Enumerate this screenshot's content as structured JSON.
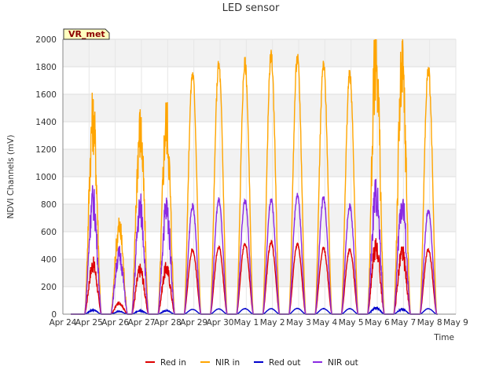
{
  "chart_data": {
    "type": "line",
    "title": "LED sensor",
    "xlabel": "Time",
    "ylabel": "NDVI Channels (mV)",
    "ylim": [
      0,
      2000
    ],
    "xlim": [
      0,
      15
    ],
    "yticks": [
      0,
      200,
      400,
      600,
      800,
      1000,
      1200,
      1400,
      1600,
      1800,
      2000
    ],
    "xticks": [
      "Apr 24",
      "Apr 25",
      "Apr 26",
      "Apr 27",
      "Apr 28",
      "Apr 29",
      "Apr 30",
      "May 1",
      "May 2",
      "May 3",
      "May 4",
      "May 5",
      "May 6",
      "May 7",
      "May 8",
      "May 9"
    ],
    "grid": true,
    "legend_position": "bottom",
    "annotation": "VR_met",
    "series": [
      {
        "name": "Red in",
        "color": "#dd0000",
        "daily_peaks": [
          360,
          80,
          320,
          330,
          470,
          495,
          515,
          525,
          510,
          480,
          470,
          490,
          440,
          470
        ]
      },
      {
        "name": "NIR in",
        "color": "#ffa500",
        "daily_peaks": [
          1410,
          630,
          1330,
          1390,
          1750,
          1810,
          1825,
          1875,
          1860,
          1810,
          1740,
          1875,
          1745,
          1775
        ]
      },
      {
        "name": "Red out",
        "color": "#0000cc",
        "daily_peaks": [
          30,
          20,
          25,
          25,
          35,
          38,
          40,
          40,
          42,
          40,
          40,
          45,
          35,
          40
        ]
      },
      {
        "name": "NIR out",
        "color": "#8a2be2",
        "daily_peaks": [
          820,
          430,
          770,
          760,
          785,
          830,
          825,
          825,
          870,
          845,
          785,
          875,
          810,
          750
        ]
      }
    ],
    "peak_times": [
      1.15,
      2.15,
      2.95,
      3.95,
      4.95,
      5.95,
      6.95,
      7.95,
      8.95,
      9.95,
      10.95,
      11.95,
      12.95,
      13.95
    ]
  }
}
